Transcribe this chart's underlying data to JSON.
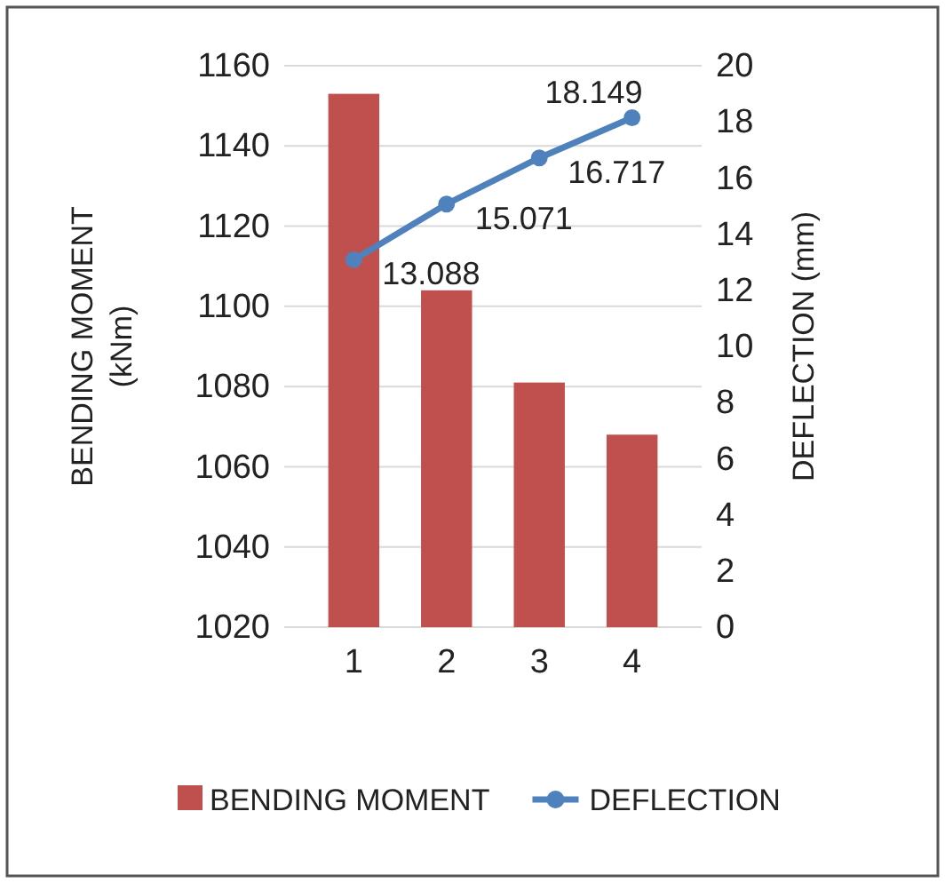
{
  "chart_data": {
    "type": "bar",
    "categories": [
      "1",
      "2",
      "3",
      "4"
    ],
    "ylabel": "BENDING MOMENT (kNm)",
    "y2label": "DEFLECTION (mm)",
    "ylim": [
      1020,
      1160
    ],
    "yticks": [
      1020,
      1040,
      1060,
      1080,
      1100,
      1120,
      1140,
      1160
    ],
    "y2lim": [
      0,
      20
    ],
    "y2ticks": [
      0,
      2,
      4,
      6,
      8,
      10,
      12,
      14,
      16,
      18,
      20
    ],
    "grid": "y",
    "legend": "bottom",
    "marker": "circle",
    "series": [
      {
        "name": "BENDING MOMENT",
        "color": "#c0504d",
        "values": [
          1153,
          1104,
          1081,
          1068
        ]
      },
      {
        "name": "DEFLECTION",
        "type": "line",
        "axis": "y2",
        "color": "#4f81bd",
        "values": [
          13.088,
          15.071,
          16.717,
          18.149
        ],
        "value_labels": [
          "13.088",
          "15.071",
          "16.717",
          "18.149"
        ]
      }
    ]
  }
}
